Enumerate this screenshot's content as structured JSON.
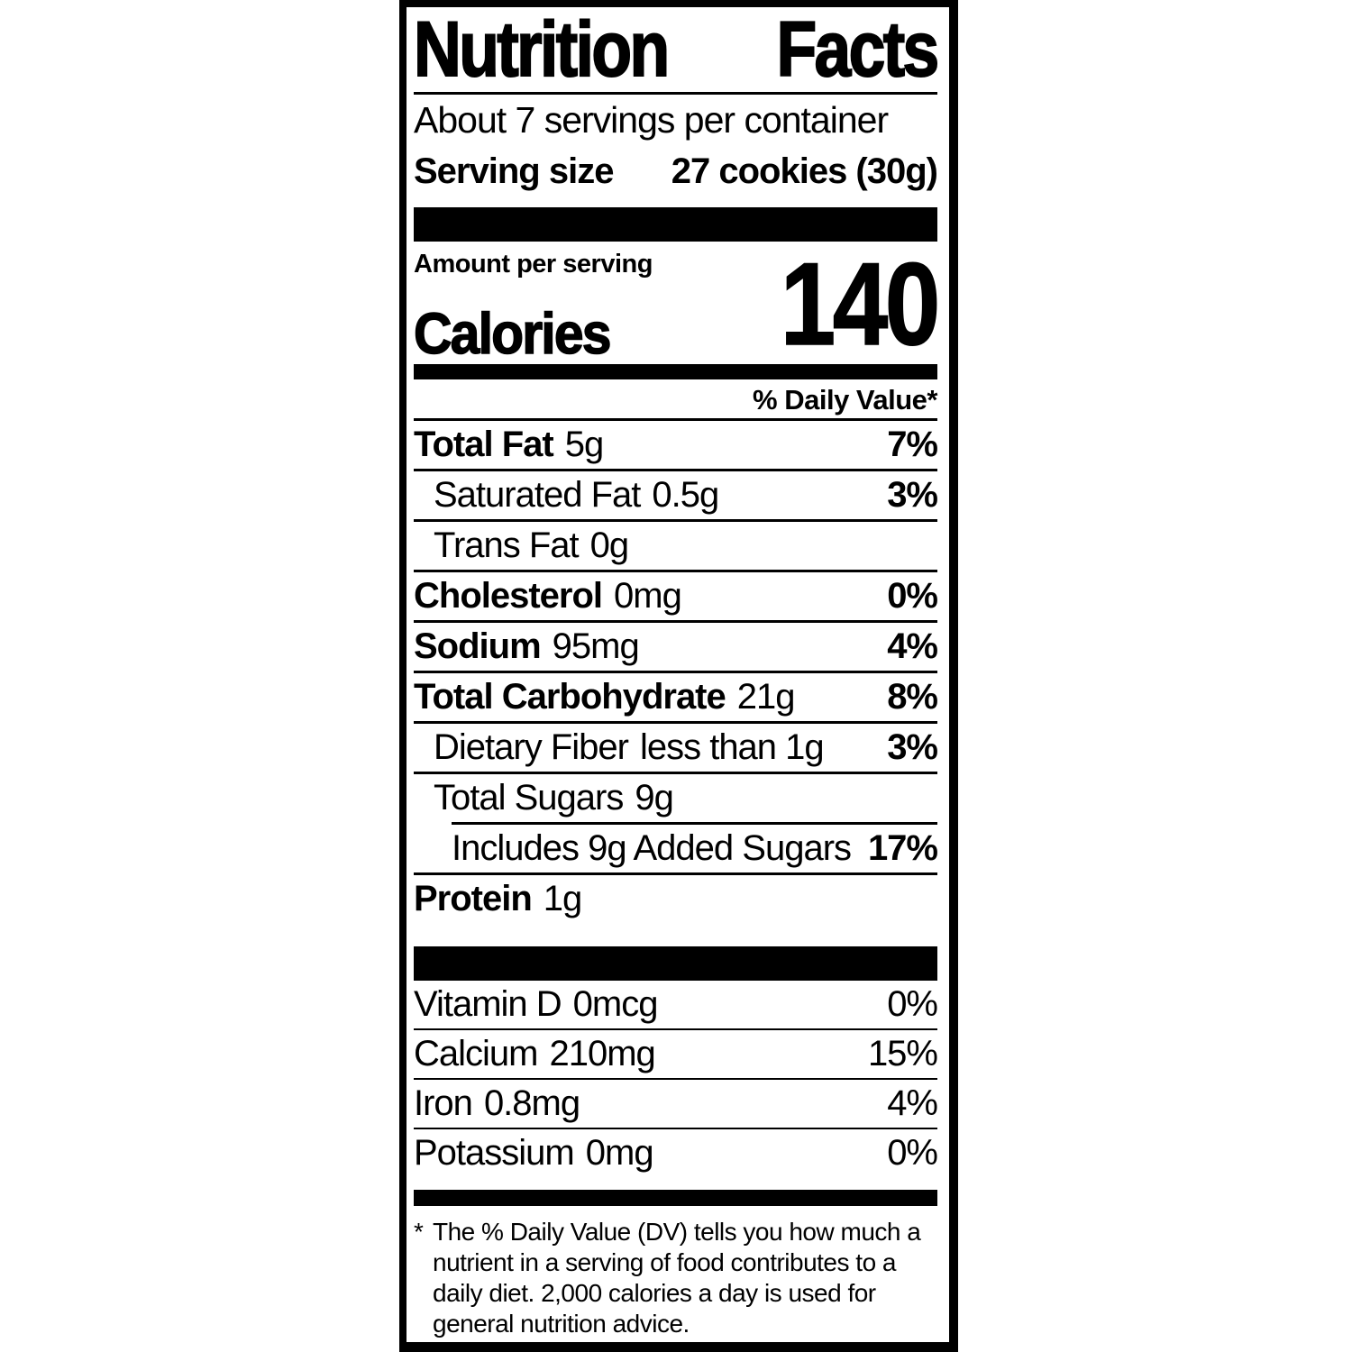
{
  "label": {
    "title": "Nutrition Facts",
    "title_words": [
      "Nutrition",
      "Facts"
    ],
    "servings_per_container": "About 7 servings per container",
    "serving_size_label": "Serving size",
    "serving_size_value": "27 cookies (30g)",
    "amount_per_serving": "Amount per serving",
    "calories_label": "Calories",
    "calories_value": "140",
    "daily_value_header": "% Daily Value*",
    "nutrients": [
      {
        "name": "Total Fat",
        "amount": "5g",
        "dv": "7%",
        "bold": true,
        "indent": 0
      },
      {
        "name": "Saturated Fat",
        "amount": "0.5g",
        "dv": "3%",
        "bold": false,
        "indent": 1
      },
      {
        "name": "Trans Fat",
        "amount": "0g",
        "dv": "",
        "bold": false,
        "indent": 1
      },
      {
        "name": "Cholesterol",
        "amount": "0mg",
        "dv": "0%",
        "bold": true,
        "indent": 0
      },
      {
        "name": "Sodium",
        "amount": "95mg",
        "dv": "4%",
        "bold": true,
        "indent": 0
      },
      {
        "name": "Total Carbohydrate",
        "amount": "21g",
        "dv": "8%",
        "bold": true,
        "indent": 0
      },
      {
        "name": "Dietary Fiber",
        "amount": "less than 1g",
        "dv": "3%",
        "bold": false,
        "indent": 1
      },
      {
        "name": "Total Sugars",
        "amount": "9g",
        "dv": "",
        "bold": false,
        "indent": 1
      },
      {
        "name": "Includes 9g Added Sugars",
        "amount": "",
        "dv": "17%",
        "bold": false,
        "indent": 2,
        "rule_indent": true
      },
      {
        "name": "Protein",
        "amount": "1g",
        "dv": "",
        "bold": true,
        "indent": 0
      }
    ],
    "micronutrients": [
      {
        "name": "Vitamin D",
        "amount": "0mcg",
        "dv": "0%"
      },
      {
        "name": "Calcium",
        "amount": "210mg",
        "dv": "15%"
      },
      {
        "name": "Iron",
        "amount": "0.8mg",
        "dv": "4%"
      },
      {
        "name": "Potassium",
        "amount": "0mg",
        "dv": "0%"
      }
    ],
    "footnote_symbol": "*",
    "footnote": "The % Daily Value (DV) tells you how much a nutrient in a serving of food contributes to a daily diet. 2,000 calories a day is used for general nutrition advice.",
    "colors": {
      "ink": "#000000",
      "background": "#ffffff"
    }
  }
}
